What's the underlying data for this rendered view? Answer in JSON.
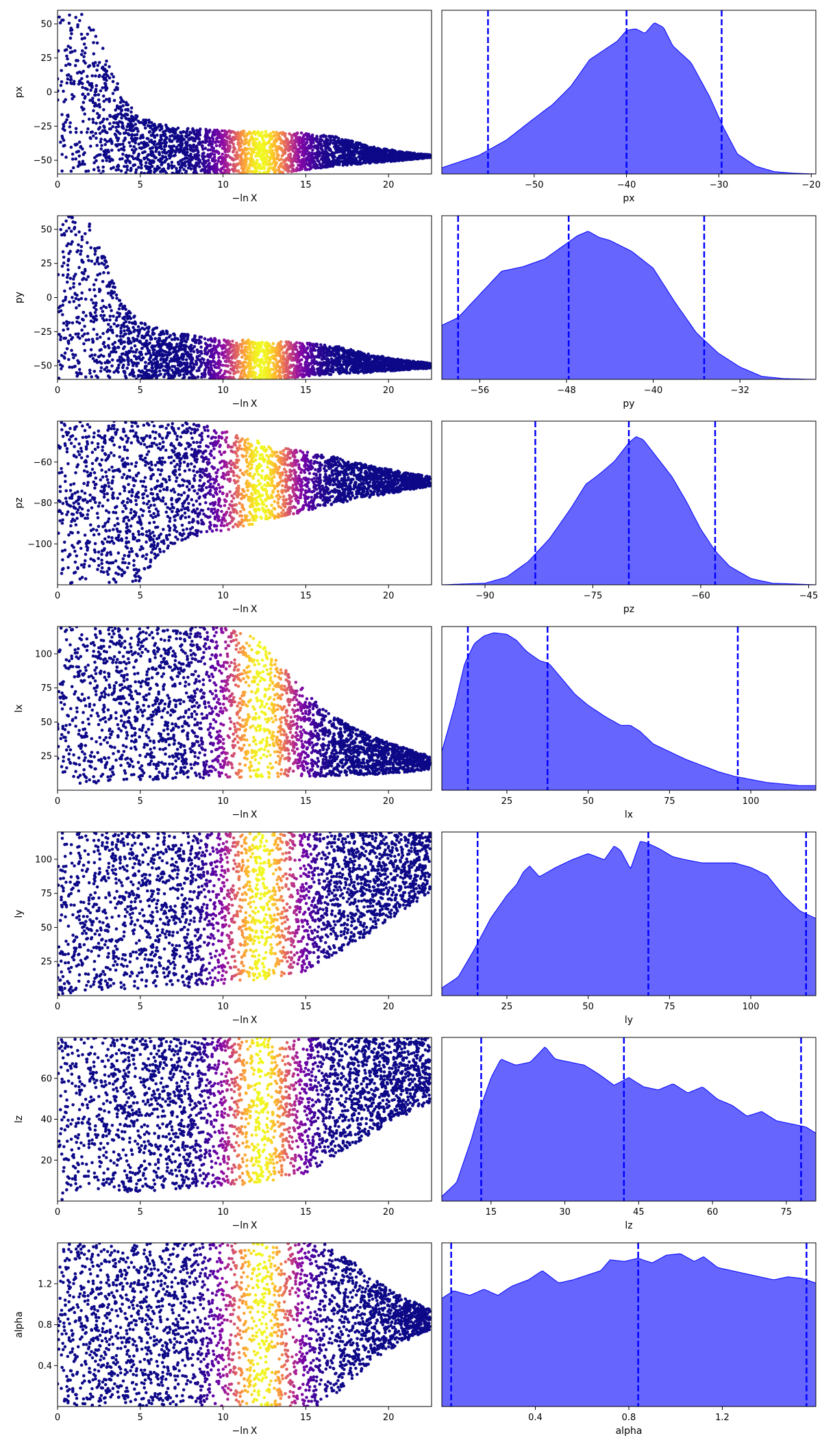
{
  "figure": {
    "colormap": "plasma",
    "kde_fill_color": "#0000ff",
    "kde_fill_opacity": 0.6,
    "quantile_line_color": "#0000ff"
  },
  "chart_data": [
    {
      "type": "scatter",
      "xlabel": "−ln X",
      "ylabel": "px",
      "xlim": [
        0,
        22.6
      ],
      "ylim": [
        -60,
        60
      ],
      "xticks": [
        0,
        5,
        10,
        15,
        20
      ],
      "xtick_labels": [
        "0",
        "5",
        "10",
        "15",
        "20"
      ],
      "yticks": [
        -50,
        -25,
        0,
        25,
        50
      ],
      "ytick_labels": [
        "−50",
        "−25",
        "0",
        "25",
        "50"
      ],
      "color_peak_x": 12.3,
      "envelope": {
        "x": [
          0,
          1,
          2,
          3,
          4,
          5,
          7,
          10,
          13,
          15,
          17,
          19,
          21,
          22.5
        ],
        "upper": [
          60,
          60,
          55,
          25,
          -5,
          -18,
          -26,
          -28,
          -29,
          -30,
          -33,
          -40,
          -44,
          -46
        ],
        "lower": [
          -60,
          -60,
          -60,
          -60,
          -60,
          -60,
          -60,
          -60,
          -60,
          -57,
          -54,
          -52,
          -50,
          -48
        ]
      }
    },
    {
      "type": "area",
      "xlabel": "px",
      "xlim": [
        -60,
        -19.5
      ],
      "ylim": [
        0,
        1.06
      ],
      "xticks": [
        -50,
        -40,
        -30,
        -20
      ],
      "xtick_labels": [
        "−50",
        "−40",
        "−30",
        "−20"
      ],
      "quantiles": [
        -55,
        -40,
        -29.7
      ],
      "density": {
        "x": [
          -60,
          -56,
          -53,
          -50,
          -48,
          -46,
          -44,
          -42.5,
          -41,
          -40,
          -39,
          -38,
          -37,
          -36,
          -35,
          -33,
          -31,
          -29.5,
          -28,
          -26,
          -24,
          -22,
          -19.5
        ],
        "y": [
          0.04,
          0.12,
          0.22,
          0.36,
          0.45,
          0.57,
          0.74,
          0.8,
          0.86,
          0.93,
          0.94,
          0.91,
          0.98,
          0.95,
          0.83,
          0.72,
          0.5,
          0.3,
          0.13,
          0.05,
          0.015,
          0.005,
          0
        ]
      }
    },
    {
      "type": "scatter",
      "xlabel": "−ln X",
      "ylabel": "py",
      "xlim": [
        0,
        22.6
      ],
      "ylim": [
        -60,
        60
      ],
      "xticks": [
        0,
        5,
        10,
        15,
        20
      ],
      "xtick_labels": [
        "0",
        "5",
        "10",
        "15",
        "20"
      ],
      "yticks": [
        -50,
        -25,
        0,
        25,
        50
      ],
      "ytick_labels": [
        "−50",
        "−25",
        "0",
        "25",
        "50"
      ],
      "color_peak_x": 12.3,
      "envelope": {
        "x": [
          0,
          1,
          2,
          3,
          4,
          5,
          7,
          10,
          13,
          15,
          17,
          19,
          21,
          22.5
        ],
        "upper": [
          60,
          60,
          55,
          25,
          -5,
          -18,
          -26,
          -30,
          -32,
          -33,
          -36,
          -42,
          -46,
          -48
        ],
        "lower": [
          -60,
          -60,
          -60,
          -60,
          -60,
          -60,
          -60,
          -60,
          -60,
          -58,
          -56,
          -55,
          -53,
          -52
        ]
      }
    },
    {
      "type": "area",
      "xlabel": "py",
      "xlim": [
        -59.5,
        -25
      ],
      "ylim": [
        0,
        1.06
      ],
      "xticks": [
        -56,
        -48,
        -40,
        -32
      ],
      "xtick_labels": [
        "−56",
        "−48",
        "−40",
        "−32"
      ],
      "quantiles": [
        -58,
        -47.8,
        -35.3
      ],
      "density": {
        "x": [
          -59.5,
          -58,
          -56,
          -54,
          -52,
          -50,
          -48,
          -47,
          -46,
          -45,
          -44,
          -42,
          -40,
          -38,
          -36,
          -34,
          -32,
          -30,
          -28,
          -25
        ],
        "y": [
          0.35,
          0.4,
          0.55,
          0.7,
          0.73,
          0.78,
          0.88,
          0.93,
          0.96,
          0.92,
          0.9,
          0.83,
          0.72,
          0.5,
          0.3,
          0.17,
          0.08,
          0.02,
          0.005,
          0
        ]
      }
    },
    {
      "type": "scatter",
      "xlabel": "−ln X",
      "ylabel": "pz",
      "xlim": [
        0,
        22.6
      ],
      "ylim": [
        -120,
        -40
      ],
      "xticks": [
        0,
        5,
        10,
        15,
        20
      ],
      "xtick_labels": [
        "0",
        "5",
        "10",
        "15",
        "20"
      ],
      "yticks": [
        -100,
        -80,
        -60
      ],
      "ytick_labels": [
        "−100",
        "−80",
        "−60"
      ],
      "color_peak_x": 12.3,
      "envelope": {
        "x": [
          0,
          4,
          5,
          6,
          7,
          9,
          11,
          13,
          15,
          17,
          19,
          21,
          22.5
        ],
        "upper": [
          -40,
          -40,
          -40,
          -40,
          -40,
          -42,
          -47,
          -52,
          -55,
          -58,
          -62,
          -65,
          -67
        ],
        "lower": [
          -120,
          -120,
          -118,
          -108,
          -100,
          -95,
          -92,
          -88,
          -84,
          -80,
          -77,
          -74,
          -72
        ]
      }
    },
    {
      "type": "area",
      "xlabel": "pz",
      "xlim": [
        -96,
        -44
      ],
      "ylim": [
        0,
        1.06
      ],
      "xticks": [
        -90,
        -75,
        -60,
        -45
      ],
      "xtick_labels": [
        "−90",
        "−75",
        "−60",
        "−45"
      ],
      "quantiles": [
        -83,
        -70,
        -58
      ],
      "density": {
        "x": [
          -96,
          -90,
          -87,
          -84,
          -81,
          -78,
          -76,
          -74,
          -72,
          -70,
          -69,
          -68,
          -66,
          -64,
          -62,
          -60,
          -58,
          -56,
          -53,
          -50,
          -44
        ],
        "y": [
          0,
          0.01,
          0.05,
          0.15,
          0.3,
          0.5,
          0.65,
          0.72,
          0.8,
          0.92,
          0.96,
          0.94,
          0.82,
          0.7,
          0.54,
          0.36,
          0.22,
          0.12,
          0.04,
          0.01,
          0
        ]
      }
    },
    {
      "type": "scatter",
      "xlabel": "−ln X",
      "ylabel": "lx",
      "xlim": [
        0,
        22.6
      ],
      "ylim": [
        0,
        120
      ],
      "xticks": [
        0,
        5,
        10,
        15,
        20
      ],
      "xtick_labels": [
        "0",
        "5",
        "10",
        "15",
        "20"
      ],
      "yticks": [
        25,
        50,
        75,
        100
      ],
      "ytick_labels": [
        "25",
        "50",
        "75",
        "100"
      ],
      "color_peak_x": 12.3,
      "envelope": {
        "x": [
          0,
          1,
          3,
          6,
          10,
          12,
          14,
          16,
          18,
          20,
          22.5
        ],
        "upper": [
          120,
          120,
          120,
          120,
          120,
          112,
          85,
          60,
          45,
          35,
          25
        ],
        "lower": [
          0,
          2,
          6,
          8,
          9,
          9,
          10,
          10,
          11,
          12,
          15
        ]
      }
    },
    {
      "type": "area",
      "xlabel": "lx",
      "xlim": [
        5,
        120
      ],
      "ylim": [
        0,
        1.06
      ],
      "xticks": [
        25,
        50,
        75,
        100
      ],
      "xtick_labels": [
        "25",
        "50",
        "75",
        "100"
      ],
      "quantiles": [
        13,
        37.5,
        96
      ],
      "density": {
        "x": [
          5,
          9,
          12,
          15,
          18,
          21,
          25,
          28,
          31,
          35,
          38,
          42,
          46,
          50,
          55,
          60,
          63,
          66,
          70,
          75,
          80,
          85,
          90,
          95,
          100,
          105,
          110,
          115,
          120
        ],
        "y": [
          0.25,
          0.55,
          0.82,
          0.95,
          1.0,
          1.02,
          1.01,
          0.97,
          0.9,
          0.84,
          0.82,
          0.72,
          0.62,
          0.55,
          0.48,
          0.42,
          0.42,
          0.38,
          0.3,
          0.25,
          0.2,
          0.16,
          0.12,
          0.09,
          0.07,
          0.05,
          0.04,
          0.03,
          0.03
        ]
      }
    },
    {
      "type": "scatter",
      "xlabel": "−ln X",
      "ylabel": "ly",
      "xlim": [
        0,
        22.6
      ],
      "ylim": [
        0,
        120
      ],
      "xticks": [
        0,
        5,
        10,
        15,
        20
      ],
      "xtick_labels": [
        "0",
        "5",
        "10",
        "15",
        "20"
      ],
      "yticks": [
        25,
        50,
        75,
        100
      ],
      "ytick_labels": [
        "25",
        "50",
        "75",
        "100"
      ],
      "color_peak_x": 12.3,
      "envelope": {
        "x": [
          0,
          1,
          4,
          8,
          11,
          13,
          15,
          16,
          18,
          20,
          22.5
        ],
        "upper": [
          120,
          120,
          120,
          120,
          120,
          120,
          120,
          120,
          120,
          120,
          120
        ],
        "lower": [
          0,
          2,
          4,
          6,
          10,
          13,
          18,
          25,
          38,
          55,
          75
        ]
      }
    },
    {
      "type": "area",
      "xlabel": "ly",
      "xlim": [
        5,
        120
      ],
      "ylim": [
        0,
        1.06
      ],
      "xticks": [
        25,
        50,
        75,
        100
      ],
      "xtick_labels": [
        "25",
        "50",
        "75",
        "100"
      ],
      "quantiles": [
        16,
        68.5,
        117
      ],
      "density": {
        "x": [
          5,
          10,
          15,
          20,
          25,
          28,
          30,
          32,
          35,
          40,
          45,
          50,
          55,
          58,
          60,
          63,
          66,
          68,
          72,
          76,
          80,
          85,
          90,
          95,
          100,
          105,
          110,
          115,
          120
        ],
        "y": [
          0.05,
          0.12,
          0.3,
          0.5,
          0.65,
          0.72,
          0.8,
          0.84,
          0.77,
          0.83,
          0.88,
          0.92,
          0.88,
          0.97,
          0.94,
          0.82,
          1.0,
          0.99,
          0.95,
          0.9,
          0.88,
          0.86,
          0.86,
          0.86,
          0.83,
          0.78,
          0.65,
          0.55,
          0.5
        ]
      }
    },
    {
      "type": "scatter",
      "xlabel": "−ln X",
      "ylabel": "lz",
      "xlim": [
        0,
        22.6
      ],
      "ylim": [
        0,
        80
      ],
      "xticks": [
        0,
        5,
        10,
        15,
        20
      ],
      "xtick_labels": [
        "0",
        "5",
        "10",
        "15",
        "20"
      ],
      "yticks": [
        20,
        40,
        60
      ],
      "ytick_labels": [
        "20",
        "40",
        "60"
      ],
      "color_peak_x": 12.3,
      "envelope": {
        "x": [
          0,
          1,
          4,
          8,
          11,
          13,
          15,
          16,
          18,
          20,
          22.5
        ],
        "upper": [
          80,
          80,
          80,
          80,
          80,
          80,
          80,
          80,
          80,
          80,
          80
        ],
        "lower": [
          0,
          2,
          4,
          6,
          8,
          10,
          13,
          18,
          28,
          38,
          48
        ]
      }
    },
    {
      "type": "area",
      "xlabel": "lz",
      "xlim": [
        5,
        81
      ],
      "ylim": [
        0,
        1.06
      ],
      "xticks": [
        15,
        30,
        45,
        60,
        75
      ],
      "xtick_labels": [
        "15",
        "30",
        "45",
        "60",
        "75"
      ],
      "quantiles": [
        13,
        42,
        78
      ],
      "density": {
        "x": [
          5,
          8,
          11,
          13,
          15,
          17,
          20,
          23,
          26,
          28,
          31,
          34,
          37,
          40,
          43,
          46,
          49,
          52,
          55,
          58,
          61,
          64,
          67,
          70,
          73,
          76,
          79,
          81
        ],
        "y": [
          0.03,
          0.12,
          0.4,
          0.62,
          0.8,
          0.92,
          0.88,
          0.9,
          1.0,
          0.92,
          0.9,
          0.88,
          0.82,
          0.75,
          0.8,
          0.74,
          0.72,
          0.76,
          0.7,
          0.74,
          0.66,
          0.62,
          0.55,
          0.58,
          0.52,
          0.5,
          0.48,
          0.44
        ]
      }
    },
    {
      "type": "scatter",
      "xlabel": "−ln X",
      "ylabel": "alpha",
      "xlim": [
        0,
        22.6
      ],
      "ylim": [
        0,
        1.6
      ],
      "xticks": [
        0,
        5,
        10,
        15,
        20
      ],
      "xtick_labels": [
        "0",
        "5",
        "10",
        "15",
        "20"
      ],
      "yticks": [
        0.4,
        0.8,
        1.2
      ],
      "ytick_labels": [
        "0.4",
        "0.8",
        "1.2"
      ],
      "color_peak_x": 12.3,
      "envelope": {
        "x": [
          0,
          4,
          8,
          11,
          13,
          15,
          16,
          18,
          20,
          22.5
        ],
        "upper": [
          1.6,
          1.6,
          1.6,
          1.6,
          1.6,
          1.6,
          1.6,
          1.4,
          1.15,
          0.95
        ],
        "lower": [
          0,
          0,
          0,
          0,
          0,
          0,
          0,
          0.3,
          0.55,
          0.75
        ]
      }
    },
    {
      "type": "area",
      "xlabel": "alpha",
      "xlim": [
        0,
        1.6
      ],
      "ylim": [
        0,
        1.06
      ],
      "xticks": [
        0.4,
        0.8,
        1.2
      ],
      "xtick_labels": [
        "0.4",
        "0.8",
        "1.2"
      ],
      "quantiles": [
        0.04,
        0.84,
        1.56
      ],
      "density": {
        "x": [
          0,
          0.05,
          0.12,
          0.18,
          0.24,
          0.3,
          0.37,
          0.43,
          0.5,
          0.56,
          0.62,
          0.68,
          0.72,
          0.78,
          0.84,
          0.9,
          0.96,
          1.02,
          1.08,
          1.12,
          1.18,
          1.24,
          1.3,
          1.36,
          1.42,
          1.48,
          1.54,
          1.6
        ],
        "y": [
          0.7,
          0.75,
          0.72,
          0.76,
          0.72,
          0.78,
          0.82,
          0.88,
          0.8,
          0.82,
          0.85,
          0.88,
          0.95,
          0.94,
          0.96,
          0.93,
          0.98,
          0.99,
          0.94,
          0.97,
          0.9,
          0.88,
          0.86,
          0.84,
          0.82,
          0.84,
          0.83,
          0.8
        ]
      }
    }
  ]
}
